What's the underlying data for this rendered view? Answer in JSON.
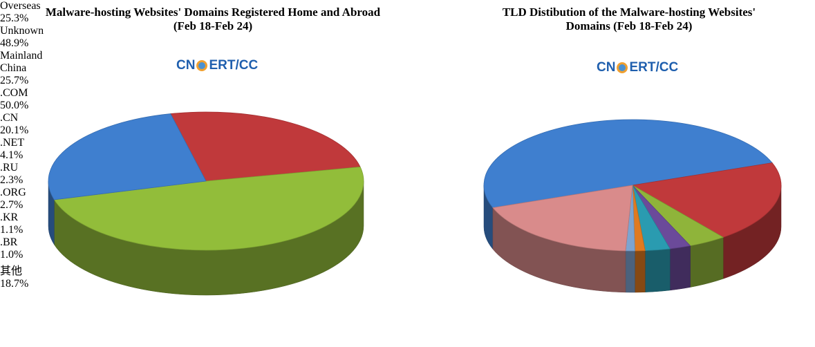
{
  "chart_data": [
    {
      "type": "pie",
      "title": "Malware-hosting Websites' Domains Registered Home and Abroad  (Feb 18-Feb 24)",
      "logo": [
        "CN",
        "ERT/CC"
      ],
      "categories": [
        "Overseas",
        "Unknown",
        "Mainland China"
      ],
      "values": [
        25.3,
        48.9,
        25.7
      ],
      "value_labels": [
        "25.3%",
        "48.9%",
        "25.7%"
      ],
      "colors": [
        "#c0393b",
        "#92bd3a",
        "#3f7fcf"
      ]
    },
    {
      "type": "pie",
      "title": "TLD Distibution of the Malware-hosting Websites' Domains (Feb 18-Feb 24)",
      "logo": [
        "CN",
        "ERT/CC"
      ],
      "categories": [
        ".COM",
        ".CN",
        ".NET",
        ".RU",
        ".ORG",
        ".KR",
        ".BR",
        "其他"
      ],
      "values": [
        50.0,
        20.1,
        4.1,
        2.3,
        2.7,
        1.1,
        1.0,
        18.7
      ],
      "value_labels": [
        "50.0%",
        "20.1%",
        "4.1%",
        "2.3%",
        "2.7%",
        "1.1%",
        "1.0%",
        "18.7%"
      ],
      "colors": [
        "#3f7fcf",
        "#c0393b",
        "#8fb43a",
        "#6b4a9a",
        "#2a9bb0",
        "#e07a20",
        "#7da4d0",
        "#d98b8b"
      ]
    }
  ]
}
